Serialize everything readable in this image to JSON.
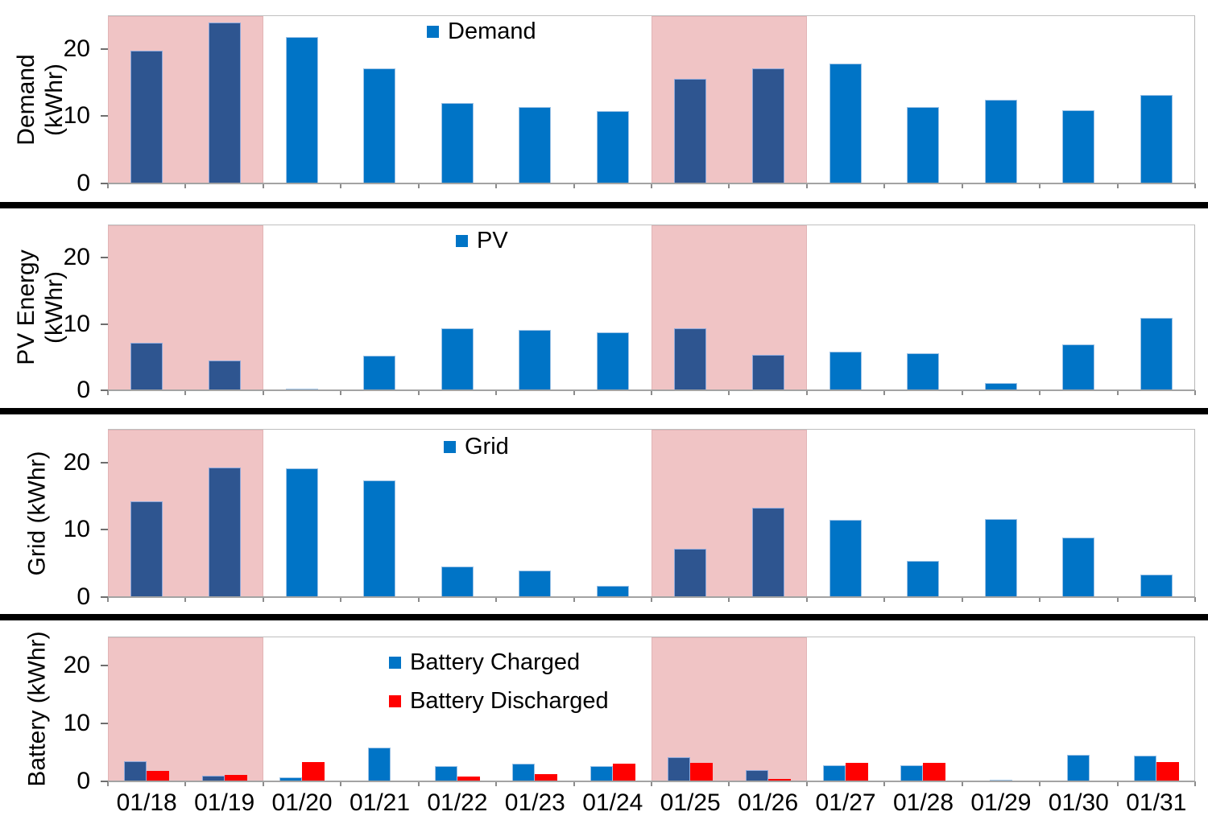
{
  "figure": {
    "description": "Four stacked daily energy bar charts sharing one date axis, with pink weekend shading",
    "x_axis_labels": [
      "01/18",
      "01/19",
      "01/20",
      "01/21",
      "01/22",
      "01/23",
      "01/24",
      "01/25",
      "01/26",
      "01/27",
      "01/28",
      "01/29",
      "01/30",
      "01/31"
    ],
    "y_tick_labels": [
      "0",
      "10",
      "20"
    ],
    "shaded_day_ranges": [
      [
        "01/18",
        "01/19"
      ],
      [
        "01/25",
        "01/26"
      ]
    ]
  },
  "colors": {
    "bar_blue": "#0074c6",
    "bar_blue_dark": "#2e5590",
    "bar_blue_light": "#bdd7ee",
    "bar_blue_edge": "#9dc3e6",
    "bar_blue_dark_edge": "#8faadc",
    "bar_red": "#ff0000",
    "band_pink": "#f0c4c5",
    "axis_gray": "#a3a3a3",
    "separator_black": "#000000",
    "text_black": "#000000"
  },
  "chart_data": [
    {
      "type": "bar",
      "title": "",
      "ylabel": "Demand (kWhr)",
      "ylabel_lines": [
        "Demand",
        "(kWhr)"
      ],
      "ylim": [
        0,
        25
      ],
      "yticks": [
        0,
        10,
        20
      ],
      "grid": false,
      "legend_position": "top-center-inside",
      "categories": [
        "01/18",
        "01/19",
        "01/20",
        "01/21",
        "01/22",
        "01/23",
        "01/24",
        "01/25",
        "01/26",
        "01/27",
        "01/28",
        "01/29",
        "01/30",
        "01/31"
      ],
      "shaded_categories": [
        "01/18",
        "01/19",
        "01/25",
        "01/26"
      ],
      "series": [
        {
          "name": "Demand",
          "values": [
            19.7,
            23.9,
            21.8,
            17.1,
            12.0,
            11.4,
            10.8,
            15.6,
            17.1,
            17.8,
            11.4,
            12.5,
            10.9,
            13.2
          ],
          "color_key": "bar_blue",
          "shaded_color_key": "bar_blue_dark"
        }
      ]
    },
    {
      "type": "bar",
      "title": "",
      "ylabel": "PV Energy (kWhr)",
      "ylabel_lines": [
        "PV Energy",
        "(kWhr)"
      ],
      "ylim": [
        0,
        25
      ],
      "yticks": [
        0,
        10,
        20
      ],
      "grid": false,
      "legend_position": "top-center-inside",
      "categories": [
        "01/18",
        "01/19",
        "01/20",
        "01/21",
        "01/22",
        "01/23",
        "01/24",
        "01/25",
        "01/26",
        "01/27",
        "01/28",
        "01/29",
        "01/30",
        "01/31"
      ],
      "shaded_categories": [
        "01/18",
        "01/19",
        "01/25",
        "01/26"
      ],
      "series": [
        {
          "name": "PV",
          "values": [
            7.2,
            4.5,
            0.1,
            5.2,
            9.3,
            9.1,
            8.8,
            9.3,
            5.4,
            5.8,
            5.6,
            1.1,
            6.9,
            10.9
          ],
          "color_key": "bar_blue",
          "shaded_color_key": "bar_blue_dark"
        }
      ]
    },
    {
      "type": "bar",
      "title": "",
      "ylabel": "Grid (kWhr)",
      "ylabel_lines": [
        "Grid (kWhr)"
      ],
      "ylim": [
        0,
        25
      ],
      "yticks": [
        0,
        10,
        20
      ],
      "grid": false,
      "legend_position": "top-center-inside",
      "categories": [
        "01/18",
        "01/19",
        "01/20",
        "01/21",
        "01/22",
        "01/23",
        "01/24",
        "01/25",
        "01/26",
        "01/27",
        "01/28",
        "01/29",
        "01/30",
        "01/31"
      ],
      "shaded_categories": [
        "01/18",
        "01/19",
        "01/25",
        "01/26"
      ],
      "series": [
        {
          "name": "Grid",
          "values": [
            14.2,
            19.3,
            19.1,
            17.4,
            4.5,
            4.0,
            1.7,
            7.2,
            13.3,
            11.5,
            5.4,
            11.6,
            8.9,
            3.4
          ],
          "color_key": "bar_blue",
          "shaded_color_key": "bar_blue_dark"
        }
      ]
    },
    {
      "type": "bar",
      "title": "",
      "ylabel": "Battery (kWhr)",
      "ylabel_lines": [
        "Battery (kWhr)"
      ],
      "ylim": [
        0,
        25
      ],
      "yticks": [
        0,
        10,
        20
      ],
      "grid": false,
      "legend_position": "upper-right-inside",
      "categories": [
        "01/18",
        "01/19",
        "01/20",
        "01/21",
        "01/22",
        "01/23",
        "01/24",
        "01/25",
        "01/26",
        "01/27",
        "01/28",
        "01/29",
        "01/30",
        "01/31"
      ],
      "shaded_categories": [
        "01/18",
        "01/19",
        "01/25",
        "01/26"
      ],
      "series": [
        {
          "name": "Battery Charged",
          "values": [
            3.5,
            1.0,
            0.7,
            5.8,
            2.6,
            3.0,
            2.7,
            4.1,
            2.0,
            2.8,
            2.8,
            0.3,
            4.6,
            4.4
          ],
          "color_key": "bar_blue",
          "shaded_color_key": "bar_blue_dark"
        },
        {
          "name": "Battery Discharged",
          "values": [
            1.8,
            1.1,
            3.4,
            0,
            0.9,
            1.2,
            3.0,
            3.2,
            0.4,
            3.2,
            3.2,
            0,
            0,
            3.4
          ],
          "color_key": "bar_red",
          "shaded_color_key": "bar_red"
        }
      ]
    }
  ]
}
